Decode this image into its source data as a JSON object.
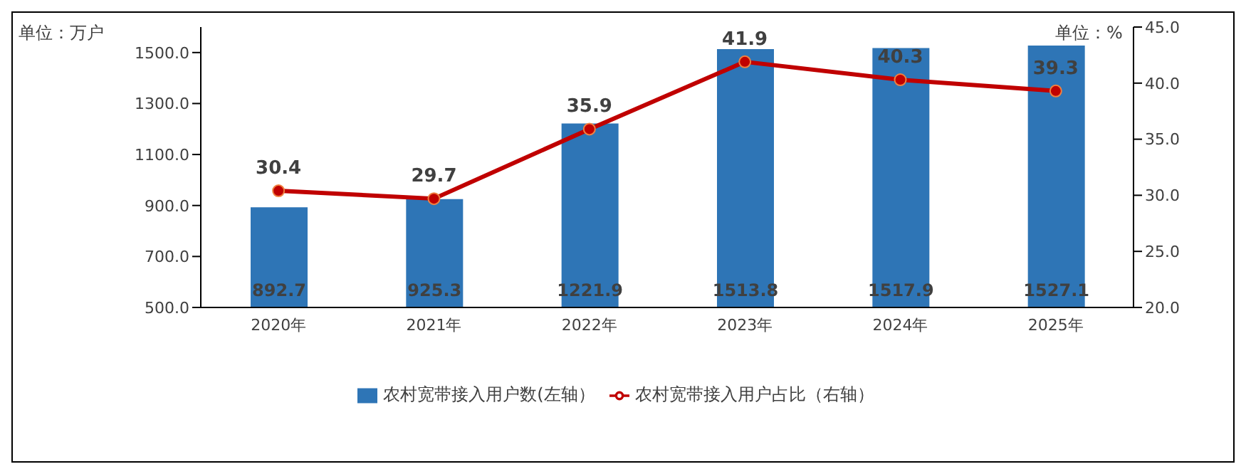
{
  "chart_data": {
    "type": "bar",
    "categories": [
      "2020年",
      "2021年",
      "2022年",
      "2023年",
      "2024年",
      "2025年"
    ],
    "series": [
      {
        "name": "农村宽带接入用户数(左轴）",
        "color": "#2e75b6",
        "values": [
          892.7,
          925.3,
          1221.9,
          1513.8,
          1517.9,
          1527.1
        ]
      },
      {
        "name": "农村宽带接入用户占比（右轴）",
        "type": "line",
        "axis": "y2",
        "color": "#c00000",
        "values": [
          30.4,
          29.7,
          35.9,
          41.9,
          40.3,
          39.3
        ]
      }
    ],
    "ylim": [
      500,
      1600
    ],
    "yticks": [
      {
        "value": 500,
        "label": "500.0"
      },
      {
        "value": 700,
        "label": "700.0"
      },
      {
        "value": 900,
        "label": "900.0"
      },
      {
        "value": 1100,
        "label": "1100.0"
      },
      {
        "value": 1300,
        "label": "1300.0"
      },
      {
        "value": 1500,
        "label": "1500.0"
      }
    ],
    "y2lim": [
      20,
      45
    ],
    "y2ticks": [
      {
        "value": 20,
        "label": "20.0"
      },
      {
        "value": 25,
        "label": "25.0"
      },
      {
        "value": 30,
        "label": "30.0"
      },
      {
        "value": 35,
        "label": "35.0"
      },
      {
        "value": 40,
        "label": "40.0"
      },
      {
        "value": 45,
        "label": "45.0"
      }
    ],
    "annotations": [
      "单位：万户",
      "单位：%"
    ],
    "data_labels": true,
    "legend": "bottom",
    "grid": false,
    "marker": "circle",
    "line_style": "solid"
  }
}
